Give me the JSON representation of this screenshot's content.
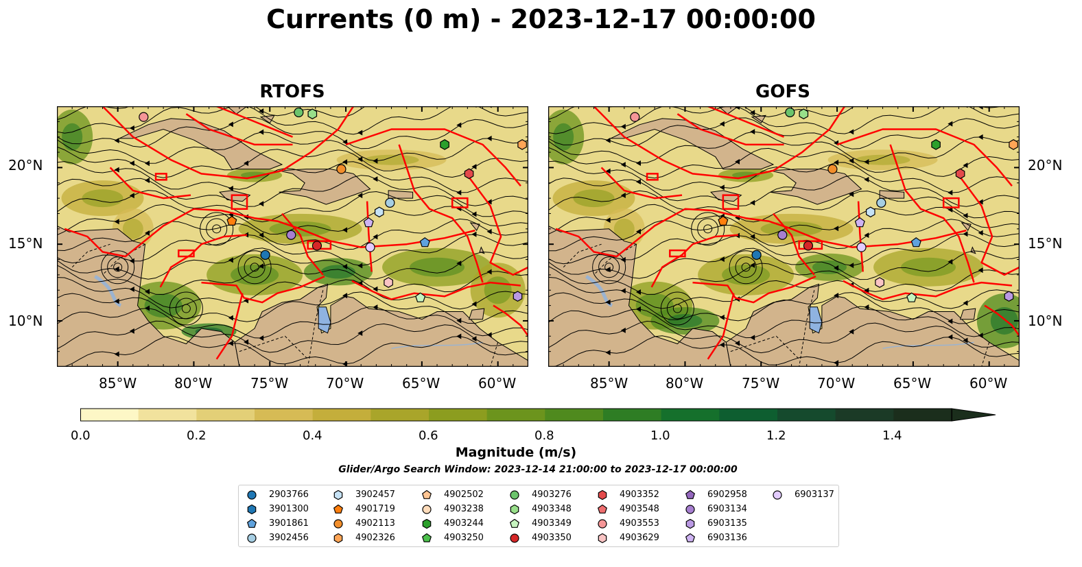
{
  "title": "Currents (0 m) - 2023-12-17 00:00:00",
  "panels": [
    {
      "title": "RTOFS"
    },
    {
      "title": "GOFS"
    }
  ],
  "axes": {
    "x_ticks": [
      "85°W",
      "80°W",
      "75°W",
      "70°W",
      "65°W",
      "60°W"
    ],
    "y_ticks": [
      "20°N",
      "15°N",
      "10°N"
    ]
  },
  "colorbar": {
    "label": "Magnitude (m/s)",
    "ticks": [
      "0.0",
      "0.2",
      "0.4",
      "0.6",
      "0.8",
      "1.0",
      "1.2",
      "1.4"
    ],
    "colors": [
      "#fdf7c6",
      "#f1e29d",
      "#e3cf77",
      "#d6bb55",
      "#c4ae3b",
      "#a9a52a",
      "#8c9d1f",
      "#6c941d",
      "#4f8a1e",
      "#2e7d24",
      "#15702c",
      "#0e5e30",
      "#154a2d",
      "#1b3a26",
      "#1b2e1c"
    ]
  },
  "search_window": "Glider/Argo Search Window: 2023-12-14 21:00:00 to 2023-12-17 00:00:00",
  "chart_data": {
    "type": "map",
    "variable": "Currents (0 m)",
    "datetime": "2023-12-17 00:00:00",
    "models": [
      "RTOFS",
      "GOFS"
    ],
    "lon_range": [
      -89,
      -58
    ],
    "lat_range": [
      7,
      24
    ],
    "color_range": [
      0.0,
      1.5
    ],
    "colorbar_label": "Magnitude (m/s)",
    "floats": [
      {
        "id": "2903766",
        "marker": "circle",
        "color": "#1f77b4",
        "lon": -75.3,
        "lat": 14.3
      },
      {
        "id": "3901300",
        "marker": "hexagon",
        "color": "#1f77b4"
      },
      {
        "id": "3901861",
        "marker": "pentagon",
        "color": "#5fa2dd",
        "lon": -64.8,
        "lat": 15.1
      },
      {
        "id": "3902456",
        "marker": "circle",
        "color": "#a6cee3",
        "lon": -67.1,
        "lat": 17.7
      },
      {
        "id": "3902457",
        "marker": "hexagon",
        "color": "#c6e2f5",
        "lon": -67.8,
        "lat": 17.1
      },
      {
        "id": "4901719",
        "marker": "pentagon",
        "color": "#ff7f0e",
        "lon": -77.5,
        "lat": 16.5
      },
      {
        "id": "4902113",
        "marker": "circle",
        "color": "#f28e2b",
        "lon": -70.3,
        "lat": 19.9
      },
      {
        "id": "4902326",
        "marker": "hexagon",
        "color": "#ffa556",
        "lon": -58.4,
        "lat": 21.5
      },
      {
        "id": "4902502",
        "marker": "pentagon",
        "color": "#ffc593"
      },
      {
        "id": "4903238",
        "marker": "circle",
        "color": "#ffdcbb"
      },
      {
        "id": "4903244",
        "marker": "hexagon",
        "color": "#2ca02c",
        "lon": -63.5,
        "lat": 21.5
      },
      {
        "id": "4903250",
        "marker": "pentagon",
        "color": "#4cc04c"
      },
      {
        "id": "4903276",
        "marker": "circle",
        "color": "#6cc46c",
        "lon": -73.1,
        "lat": 23.6
      },
      {
        "id": "4903348",
        "marker": "hexagon",
        "color": "#98df8a",
        "lon": -72.2,
        "lat": 23.5
      },
      {
        "id": "4903349",
        "marker": "pentagon",
        "color": "#c7f4c0",
        "lon": -65.1,
        "lat": 11.5
      },
      {
        "id": "4903350",
        "marker": "circle",
        "color": "#d62728",
        "lon": -71.9,
        "lat": 14.9
      },
      {
        "id": "4903352",
        "marker": "hexagon",
        "color": "#e34a4b",
        "lon": -61.9,
        "lat": 19.6
      },
      {
        "id": "4903548",
        "marker": "pentagon",
        "color": "#ef6f70"
      },
      {
        "id": "4903553",
        "marker": "circle",
        "color": "#f59697",
        "lon": -83.3,
        "lat": 23.3
      },
      {
        "id": "4903629",
        "marker": "hexagon",
        "color": "#f9c4c4",
        "lon": -67.2,
        "lat": 12.5
      },
      {
        "id": "6902958",
        "marker": "pentagon",
        "color": "#9467bd"
      },
      {
        "id": "6903134",
        "marker": "circle",
        "color": "#a77fd0",
        "lon": -73.6,
        "lat": 15.6
      },
      {
        "id": "6903135",
        "marker": "hexagon",
        "color": "#ba99e3",
        "lon": -58.7,
        "lat": 11.6
      },
      {
        "id": "6903136",
        "marker": "pentagon",
        "color": "#ceb3f2",
        "lon": -68.5,
        "lat": 16.4
      },
      {
        "id": "6903137",
        "marker": "circle",
        "color": "#e3ccff",
        "lon": -68.4,
        "lat": 14.8
      }
    ]
  }
}
